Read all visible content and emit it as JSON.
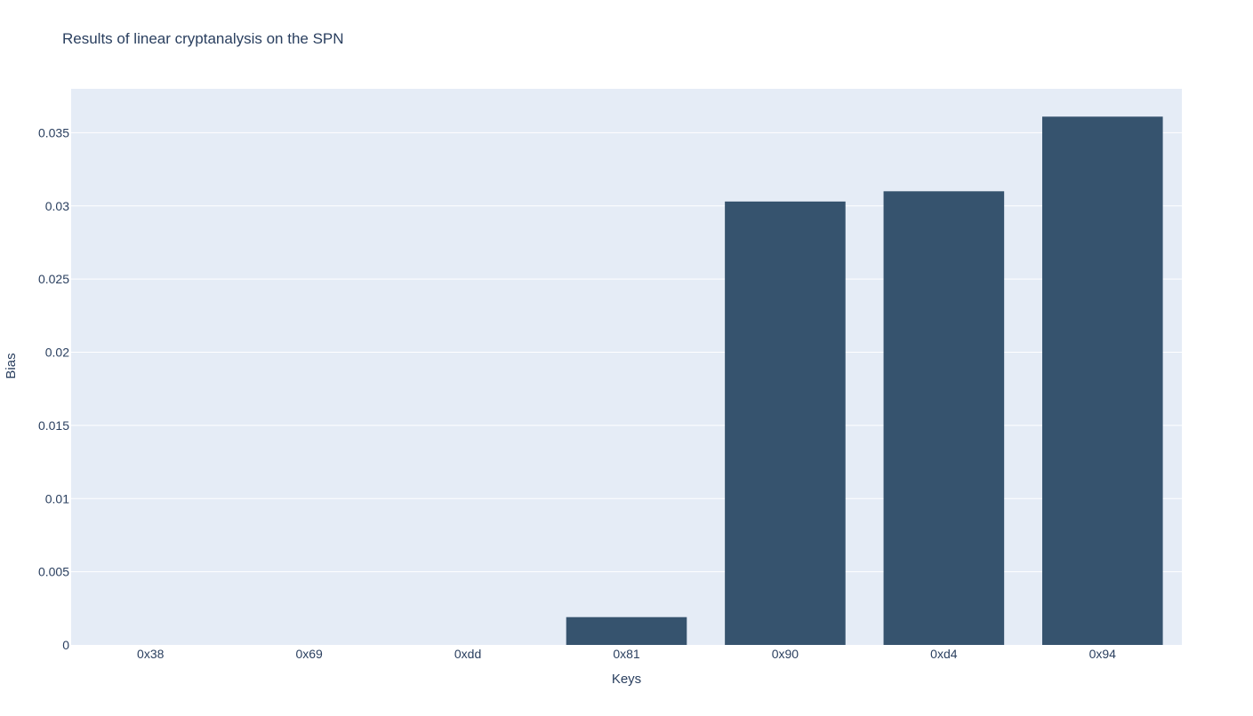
{
  "chart_data": {
    "type": "bar",
    "title": "Results of linear cryptanalysis on the SPN",
    "xlabel": "Keys",
    "ylabel": "Bias",
    "categories": [
      "0x38",
      "0x69",
      "0xdd",
      "0x81",
      "0x90",
      "0xd4",
      "0x94"
    ],
    "values": [
      0,
      0,
      0,
      0.0019,
      0.0303,
      0.031,
      0.0361
    ],
    "ylim": [
      0,
      0.038
    ],
    "yticks": [
      0,
      0.005,
      0.01,
      0.015,
      0.02,
      0.025,
      0.03,
      0.035
    ],
    "ytick_labels": [
      "0",
      "0.005",
      "0.01",
      "0.015",
      "0.02",
      "0.025",
      "0.03",
      "0.035"
    ],
    "grid": true,
    "legend": "none",
    "colors": {
      "bar": "#36536e",
      "plot_background": "#e5ecf6",
      "grid": "#ffffff",
      "text": "#2a3f5f"
    }
  }
}
